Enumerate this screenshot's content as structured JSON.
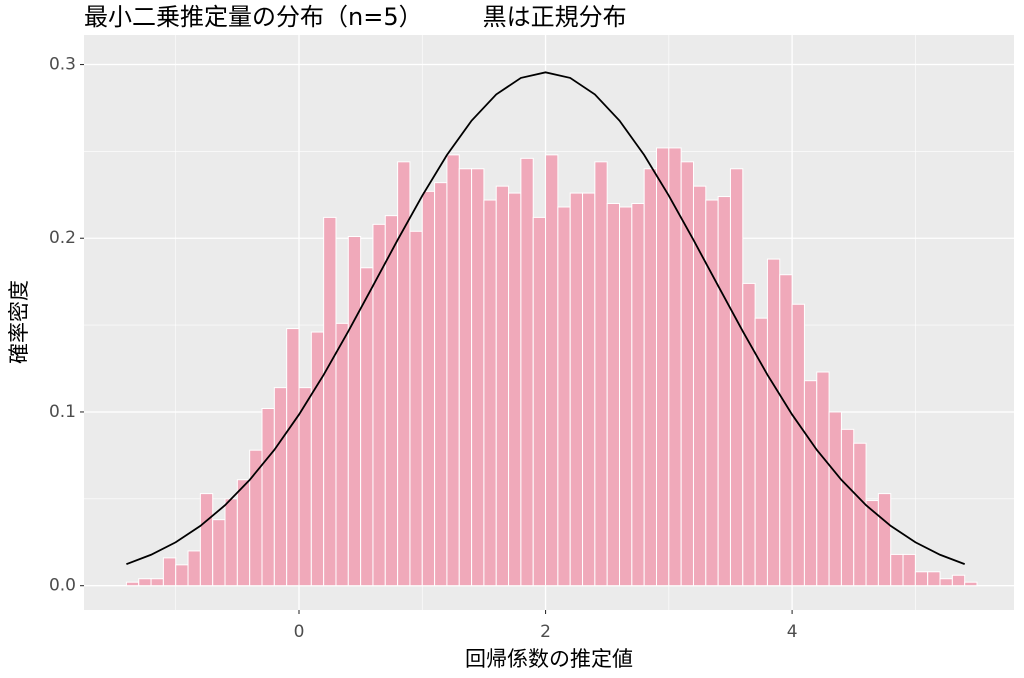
{
  "chart_data": {
    "type": "histogram",
    "title": "最小二乗推定量の分布（n=5）　　　黒は正規分布",
    "x_label": "回帰係数の推定値",
    "y_label": "確率密度",
    "bins": [
      -1.4,
      -1.3,
      -1.2,
      -1.1,
      -1.0,
      -0.9,
      -0.8,
      -0.7,
      -0.6,
      -0.5,
      -0.4,
      -0.3,
      -0.2,
      -0.1,
      0,
      0.1,
      0.2,
      0.3,
      0.4,
      0.5,
      0.6,
      0.7,
      0.8,
      0.9,
      1.0,
      1.1,
      1.2,
      1.3,
      1.4,
      1.5,
      1.6,
      1.7,
      1.8,
      1.9,
      2.0,
      2.1,
      2.2,
      2.3,
      2.4,
      2.5,
      2.6,
      2.7,
      2.8,
      2.9,
      3.0,
      3.1,
      3.2,
      3.3,
      3.4,
      3.5,
      3.6,
      3.7,
      3.8,
      3.9,
      4.0,
      4.1,
      4.2,
      4.3,
      4.4,
      4.5,
      4.6,
      4.7,
      4.8,
      4.9,
      5.0,
      5.1,
      5.2,
      5.3,
      5.4,
      5.5
    ],
    "values": [
      0.002,
      0.004,
      0.004,
      0.016,
      0.012,
      0.02,
      0.053,
      0.038,
      0.05,
      0.061,
      0.078,
      0.102,
      0.114,
      0.148,
      0.114,
      0.146,
      0.212,
      0.151,
      0.201,
      0.183,
      0.208,
      0.213,
      0.244,
      0.204,
      0.227,
      0.232,
      0.248,
      0.24,
      0.24,
      0.222,
      0.23,
      0.226,
      0.246,
      0.212,
      0.248,
      0.218,
      0.226,
      0.226,
      0.244,
      0.22,
      0.218,
      0.22,
      0.24,
      0.252,
      0.252,
      0.244,
      0.23,
      0.222,
      0.224,
      0.24,
      0.174,
      0.154,
      0.188,
      0.179,
      0.162,
      0.118,
      0.123,
      0.1,
      0.09,
      0.082,
      0.049,
      0.053,
      0.018,
      0.018,
      0.008,
      0.008,
      0.004,
      0.006,
      0.002
    ],
    "color": "#f0a9ba",
    "edge_color": "#ffffff",
    "curve": {
      "type": "line",
      "color": "#000000",
      "x": [
        -1.4,
        -1.2,
        -1.0,
        -0.8,
        -0.6,
        -0.4,
        -0.2,
        0,
        0.2,
        0.4,
        0.6,
        0.8,
        1.0,
        1.2,
        1.4,
        1.6,
        1.8,
        2.0,
        2.2,
        2.4,
        2.6,
        2.8,
        3.0,
        3.2,
        3.4,
        3.6,
        3.8,
        4.0,
        4.2,
        4.4,
        4.6,
        4.8,
        5.0,
        5.2,
        5.4
      ],
      "y": [
        0.0124,
        0.0178,
        0.025,
        0.0344,
        0.0463,
        0.0609,
        0.0782,
        0.0985,
        0.1214,
        0.1464,
        0.1726,
        0.199,
        0.2245,
        0.2479,
        0.2677,
        0.2828,
        0.2923,
        0.2955,
        0.2923,
        0.2828,
        0.2677,
        0.2479,
        0.2245,
        0.199,
        0.1726,
        0.1464,
        0.1214,
        0.0985,
        0.0782,
        0.0609,
        0.0463,
        0.0344,
        0.025,
        0.0178,
        0.0124
      ]
    },
    "xlim": [
      -1.744,
      5.8
    ],
    "ylim": [
      -0.014,
      0.317
    ],
    "xticks": [
      0,
      2,
      4
    ],
    "yticks": [
      {
        "value": 0,
        "label": "0.0"
      },
      {
        "value": 0.1,
        "label": "0.1"
      },
      {
        "value": 0.2,
        "label": "0.2"
      },
      {
        "value": 0.3,
        "label": "0.3"
      }
    ],
    "xminor": [
      -1,
      1,
      3,
      5
    ],
    "yminor": [
      0.05,
      0.15,
      0.25
    ],
    "grid": true
  }
}
